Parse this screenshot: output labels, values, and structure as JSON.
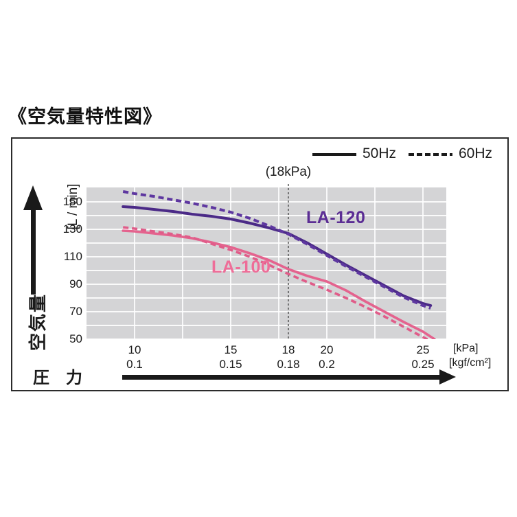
{
  "title": "《空気量特性図》",
  "legend": {
    "hz50": "50Hz",
    "hz60": "60Hz",
    "position": "top-right"
  },
  "annotation_18kpa": "(18kPa)",
  "y_axis": {
    "name": "空気量",
    "unit": "[L / min]",
    "ticks": [
      150,
      130,
      110,
      90,
      70,
      50
    ]
  },
  "x_axis": {
    "name": "圧　力",
    "unit_kpa": "[kPa]",
    "unit_kgf": "[kgf/cm²]",
    "ticks": [
      {
        "x": 10,
        "kpa": "10",
        "kgf": "0.1"
      },
      {
        "x": 15,
        "kpa": "15",
        "kgf": "0.15"
      },
      {
        "x": 18,
        "kpa": "18",
        "kgf": "0.18"
      },
      {
        "x": 20,
        "kpa": "20",
        "kgf": "0.2"
      },
      {
        "x": 25,
        "kpa": "25",
        "kgf": "0.25"
      }
    ]
  },
  "series_labels": {
    "la120": "LA-120",
    "la100": "LA-100"
  },
  "colors": {
    "plot_bg": "#d4d4d6",
    "gridline": "#ffffff",
    "vline": "#4a4a4a",
    "axis_text": "#1a1a1a",
    "la120": "#4b2a87",
    "la120_dash": "#5e37a0",
    "la120_label": "#5b2d94",
    "la100": "#e4638e",
    "la100_dash": "#e05c89",
    "la100_label": "#ee6d98"
  },
  "chart_data": {
    "type": "line",
    "title": "空気量特性図 (airflow characteristic diagram)",
    "xlabel": "圧力 [kPa] / [kgf/cm2]",
    "ylabel": "空気量 [L / min]",
    "xlim": [
      7.5,
      26.2
    ],
    "ylim": [
      50,
      160.5
    ],
    "x_gridlines": [
      10,
      12.5,
      15,
      17.5,
      20,
      22.5,
      25
    ],
    "y_gridlines": [
      50,
      60,
      70,
      80,
      90,
      100,
      110,
      120,
      130,
      140,
      150
    ],
    "vline_x": 18,
    "grid": true,
    "legend_position": "top-right",
    "series": [
      {
        "name": "LA-120 50Hz",
        "model": "LA-120",
        "freq": "50Hz",
        "style": "solid",
        "color": "#4b2a87",
        "width": 4,
        "points": [
          [
            9.4,
            146.5
          ],
          [
            10,
            146
          ],
          [
            11,
            144.5
          ],
          [
            12,
            143
          ],
          [
            13,
            141
          ],
          [
            14,
            139.5
          ],
          [
            15,
            137.5
          ],
          [
            16,
            134.5
          ],
          [
            17,
            131
          ],
          [
            18,
            127
          ],
          [
            19,
            120
          ],
          [
            20,
            112
          ],
          [
            21,
            104
          ],
          [
            22,
            96.5
          ],
          [
            23,
            89
          ],
          [
            24,
            81.5
          ],
          [
            25,
            76
          ],
          [
            25.4,
            74.5
          ]
        ]
      },
      {
        "name": "LA-120 60Hz",
        "model": "LA-120",
        "freq": "60Hz",
        "style": "dashed",
        "color": "#5e37a0",
        "width": 4,
        "dash": "8 5",
        "points": [
          [
            9.4,
            157.5
          ],
          [
            10,
            156
          ],
          [
            11,
            154
          ],
          [
            12,
            151.5
          ],
          [
            13,
            149
          ],
          [
            14,
            146
          ],
          [
            15,
            142.5
          ],
          [
            16,
            138
          ],
          [
            17,
            132.5
          ],
          [
            18,
            126.5
          ],
          [
            19,
            119
          ],
          [
            20,
            111
          ],
          [
            21,
            103
          ],
          [
            22,
            95.5
          ],
          [
            23,
            88
          ],
          [
            24,
            80.5
          ],
          [
            25,
            74.5
          ],
          [
            25.4,
            72.5
          ]
        ]
      },
      {
        "name": "LA-100 50Hz",
        "model": "LA-100",
        "freq": "50Hz",
        "style": "solid",
        "color": "#e4638e",
        "width": 3.6,
        "points": [
          [
            9.4,
            129
          ],
          [
            10,
            128.5
          ],
          [
            11,
            127
          ],
          [
            12,
            125.5
          ],
          [
            13,
            123.5
          ],
          [
            14,
            120.5
          ],
          [
            15,
            117
          ],
          [
            16,
            112.5
          ],
          [
            17,
            107.5
          ],
          [
            18,
            101
          ],
          [
            19,
            96
          ],
          [
            20,
            92
          ],
          [
            21,
            85.5
          ],
          [
            22,
            77.5
          ],
          [
            23,
            70
          ],
          [
            24,
            62.5
          ],
          [
            25,
            55.5
          ],
          [
            25.6,
            50
          ]
        ]
      },
      {
        "name": "LA-100 60Hz",
        "model": "LA-100",
        "freq": "60Hz",
        "style": "dashed",
        "color": "#e05c89",
        "width": 3.6,
        "dash": "8 5",
        "points": [
          [
            9.4,
            131.5
          ],
          [
            10,
            130.5
          ],
          [
            11,
            128.5
          ],
          [
            12,
            126.5
          ],
          [
            13,
            124
          ],
          [
            14,
            119.5
          ],
          [
            15,
            115
          ],
          [
            16,
            110
          ],
          [
            17,
            104
          ],
          [
            18,
            97.5
          ],
          [
            19,
            91.5
          ],
          [
            20,
            86
          ],
          [
            21,
            80
          ],
          [
            22,
            73.5
          ],
          [
            23,
            66.5
          ],
          [
            24,
            59
          ],
          [
            25,
            51.5
          ],
          [
            25.5,
            48
          ]
        ]
      }
    ]
  }
}
